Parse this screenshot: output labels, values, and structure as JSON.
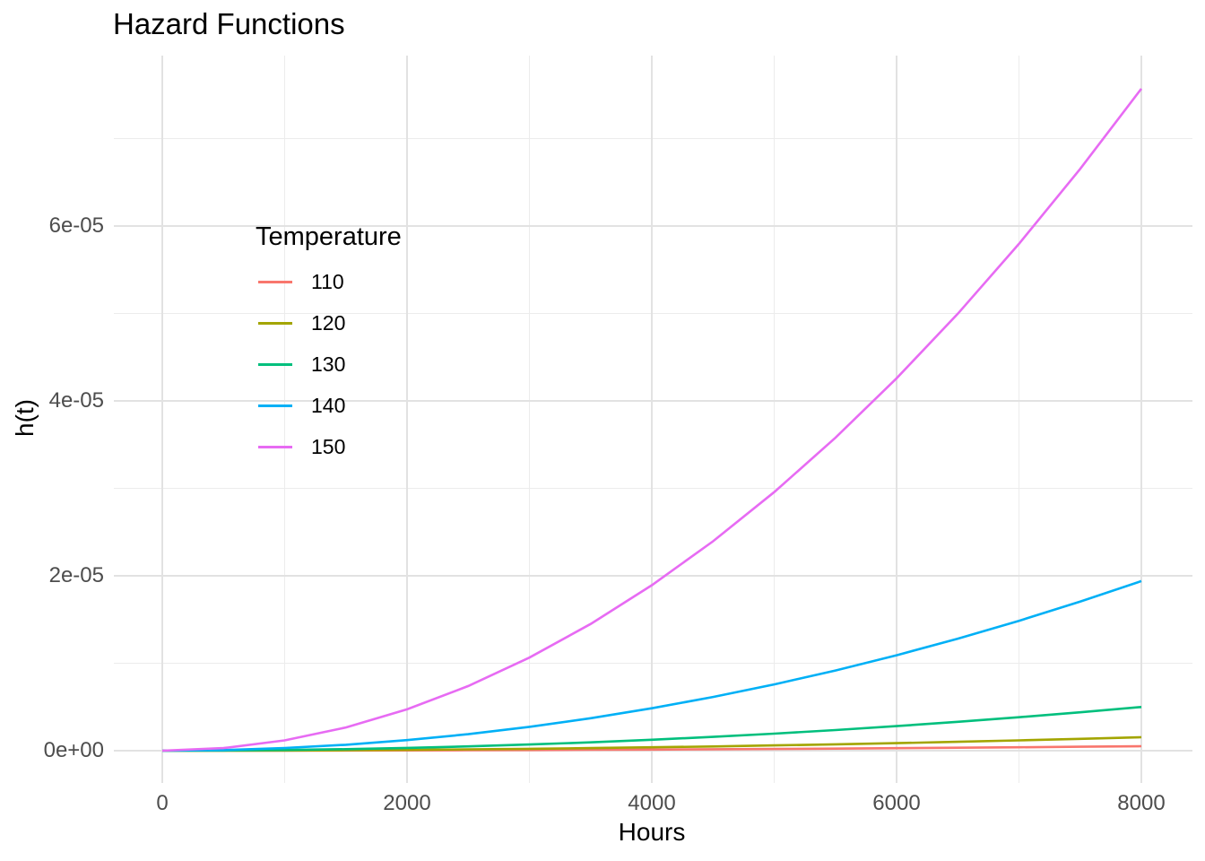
{
  "chart_data": {
    "type": "line",
    "title": "Hazard Functions",
    "xlabel": "Hours",
    "ylabel": "h(t)",
    "legend_title": "Temperature",
    "legend_position": "inside-left",
    "grid": "major+minor",
    "xlim": [
      0,
      8000
    ],
    "ylim": [
      0,
      7.6e-05
    ],
    "x_ticks": [
      {
        "value": 0,
        "label": "0"
      },
      {
        "value": 2000,
        "label": "2000"
      },
      {
        "value": 4000,
        "label": "4000"
      },
      {
        "value": 6000,
        "label": "6000"
      },
      {
        "value": 8000,
        "label": "8000"
      }
    ],
    "y_ticks": [
      {
        "value": 0,
        "label": "0e+00"
      },
      {
        "value": 2e-05,
        "label": "2e-05"
      },
      {
        "value": 4e-05,
        "label": "4e-05"
      },
      {
        "value": 6e-05,
        "label": "6e-05"
      }
    ],
    "x_minor": [
      1000,
      3000,
      5000,
      7000
    ],
    "y_minor": [
      1e-05,
      3e-05,
      5e-05,
      7e-05
    ],
    "x": [
      0,
      500,
      1000,
      1500,
      2000,
      2500,
      3000,
      3500,
      4000,
      4500,
      5000,
      5500,
      6000,
      6500,
      7000,
      7500,
      8000
    ],
    "series": [
      {
        "name": "110",
        "color": "#F8766D",
        "values": [
          0,
          2e-09,
          8e-09,
          1.8e-08,
          3.2e-08,
          5e-08,
          7.2e-08,
          9.8e-08,
          1.28e-07,
          1.61e-07,
          1.99e-07,
          2.41e-07,
          2.87e-07,
          3.37e-07,
          3.9e-07,
          4.48e-07,
          5.1e-07
        ]
      },
      {
        "name": "120",
        "color": "#A3A500",
        "values": [
          0,
          6e-09,
          2.4e-08,
          5.4e-08,
          9.6e-08,
          1.5e-07,
          2.17e-07,
          2.95e-07,
          3.85e-07,
          4.87e-07,
          6.02e-07,
          7.28e-07,
          8.66e-07,
          1.017e-06,
          1.179e-06,
          1.353e-06,
          1.54e-06
        ]
      },
      {
        "name": "130",
        "color": "#00BF7D",
        "values": [
          0,
          2e-08,
          7.8e-08,
          1.76e-07,
          3.13e-07,
          4.88e-07,
          7.03e-07,
          9.57e-07,
          1.25e-06,
          1.58e-06,
          1.95e-06,
          2.36e-06,
          2.81e-06,
          3.3e-06,
          3.83e-06,
          4.39e-06,
          5e-06
        ]
      },
      {
        "name": "140",
        "color": "#00B0F6",
        "values": [
          0,
          7.6e-08,
          3.03e-07,
          6.8e-07,
          1.21e-06,
          1.89e-06,
          2.73e-06,
          3.71e-06,
          4.85e-06,
          6.14e-06,
          7.58e-06,
          9.17e-06,
          1.091e-05,
          1.281e-05,
          1.485e-05,
          1.705e-05,
          1.94e-05
        ]
      },
      {
        "name": "150",
        "color": "#E76BF3",
        "values": [
          0,
          2.96e-07,
          1.183e-06,
          2.661e-06,
          4.731e-06,
          7.393e-06,
          1.0645e-05,
          1.449e-05,
          1.8925e-05,
          2.395e-05,
          2.957e-05,
          3.578e-05,
          4.258e-05,
          4.997e-05,
          5.796e-05,
          6.653e-05,
          7.57e-05
        ]
      }
    ]
  },
  "colors": {
    "background": "#FFFFFF",
    "grid_major": "#E2E2E2",
    "grid_minor": "#ECECEC",
    "tick_label": "#4D4D4D",
    "text": "#000000"
  }
}
